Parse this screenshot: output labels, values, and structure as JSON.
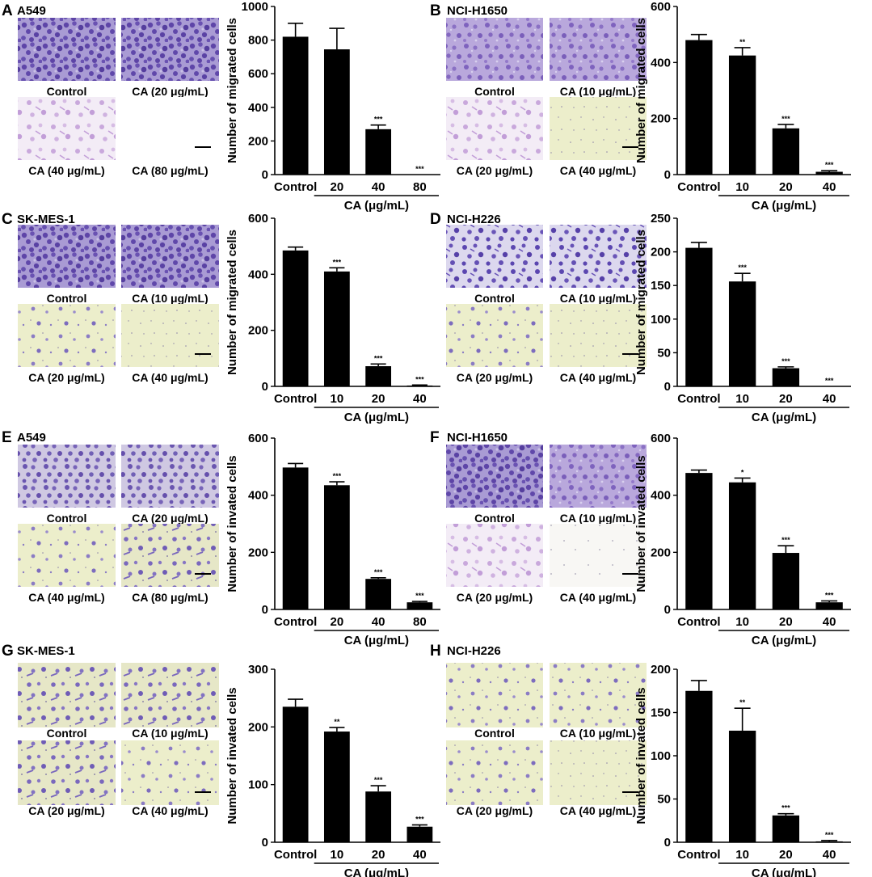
{
  "colors": {
    "bar": "#000000",
    "stain_dense": "#7a5fb8",
    "stain_light": "#e9ebc4",
    "stain_pale": "#f1eaf3"
  },
  "panels": [
    {
      "letter": "A",
      "cell": "A549",
      "images": [
        {
          "label": "Control",
          "style": "dense"
        },
        {
          "label": "CA (20 μg/mL)",
          "style": "dense"
        },
        {
          "label": "CA (40 μg/mL)",
          "style": "pale"
        },
        {
          "label": "CA (80 μg/mL)",
          "style": "empty"
        }
      ]
    },
    {
      "letter": "B",
      "cell": "NCI-H1650",
      "images": [
        {
          "label": "Control",
          "style": "lavender"
        },
        {
          "label": "CA (10 μg/mL)",
          "style": "lavender"
        },
        {
          "label": "CA (20 μg/mL)",
          "style": "pale"
        },
        {
          "label": "CA (40 μg/mL)",
          "style": "green"
        }
      ]
    },
    {
      "letter": "C",
      "cell": "SK-MES-1",
      "images": [
        {
          "label": "Control",
          "style": "dense"
        },
        {
          "label": "CA (10 μg/mL)",
          "style": "dense"
        },
        {
          "label": "CA (20 μg/mL)",
          "style": "green_sparse"
        },
        {
          "label": "CA (40 μg/mL)",
          "style": "green"
        }
      ]
    },
    {
      "letter": "D",
      "cell": "NCI-H226",
      "images": [
        {
          "label": "Control",
          "style": "medium"
        },
        {
          "label": "CA (10 μg/mL)",
          "style": "medium"
        },
        {
          "label": "CA (20 μg/mL)",
          "style": "green_sparse"
        },
        {
          "label": "CA (40 μg/mL)",
          "style": "green"
        }
      ]
    },
    {
      "letter": "E",
      "cell": "A549",
      "images": [
        {
          "label": "Control",
          "style": "green_dense"
        },
        {
          "label": "CA (20 μg/mL)",
          "style": "green_dense"
        },
        {
          "label": "CA (40 μg/mL)",
          "style": "green_sparse"
        },
        {
          "label": "CA (80 μg/mL)",
          "style": "green_medium"
        }
      ]
    },
    {
      "letter": "F",
      "cell": "NCI-H1650",
      "images": [
        {
          "label": "Control",
          "style": "dense"
        },
        {
          "label": "CA (10 μg/mL)",
          "style": "lavender"
        },
        {
          "label": "CA (20 μg/mL)",
          "style": "pale"
        },
        {
          "label": "CA (40 μg/mL)",
          "style": "white"
        }
      ]
    },
    {
      "letter": "G",
      "cell": "SK-MES-1",
      "images": [
        {
          "label": "Control",
          "style": "green_medium"
        },
        {
          "label": "CA (10 μg/mL)",
          "style": "green_medium"
        },
        {
          "label": "CA (20 μg/mL)",
          "style": "green_medium"
        },
        {
          "label": "CA (40 μg/mL)",
          "style": "green_sparse"
        }
      ]
    },
    {
      "letter": "H",
      "cell": "NCI-H226",
      "images": [
        {
          "label": "Control",
          "style": "green_sparse"
        },
        {
          "label": "CA (10 μg/mL)",
          "style": "green_sparse"
        },
        {
          "label": "CA (20 μg/mL)",
          "style": "green_sparse"
        },
        {
          "label": "CA (40 μg/mL)",
          "style": "green"
        }
      ]
    }
  ],
  "chart_data": [
    {
      "panel": "A",
      "type": "bar",
      "categories": [
        "Control",
        "20",
        "40",
        "80"
      ],
      "values": [
        820,
        745,
        270,
        0
      ],
      "errors": [
        80,
        125,
        25,
        0
      ],
      "significance": [
        "",
        "",
        "***",
        "***"
      ],
      "ylabel": "Number of migrated cells",
      "xlabel": "CA (μg/mL)",
      "ylim": [
        0,
        1000
      ],
      "yticks": [
        0,
        200,
        400,
        600,
        800,
        1000
      ]
    },
    {
      "panel": "B",
      "type": "bar",
      "categories": [
        "Control",
        "10",
        "20",
        "40"
      ],
      "values": [
        480,
        425,
        165,
        10
      ],
      "errors": [
        20,
        28,
        14,
        4
      ],
      "significance": [
        "",
        "**",
        "***",
        "***"
      ],
      "ylabel": "Number of migrated cells",
      "xlabel": "CA (μg/mL)",
      "ylim": [
        0,
        600
      ],
      "yticks": [
        0,
        200,
        400,
        600
      ]
    },
    {
      "panel": "C",
      "type": "bar",
      "categories": [
        "Control",
        "10",
        "20",
        "40"
      ],
      "values": [
        485,
        410,
        72,
        3
      ],
      "errors": [
        12,
        13,
        8,
        2
      ],
      "significance": [
        "",
        "***",
        "***",
        "***"
      ],
      "ylabel": "Number of migrated cells",
      "xlabel": "CA (μg/mL)",
      "ylim": [
        0,
        600
      ],
      "yticks": [
        0,
        200,
        400,
        600
      ]
    },
    {
      "panel": "D",
      "type": "bar",
      "categories": [
        "Control",
        "10",
        "20",
        "40"
      ],
      "values": [
        206,
        156,
        27,
        0
      ],
      "errors": [
        8,
        12,
        2,
        0
      ],
      "significance": [
        "",
        "***",
        "***",
        "***"
      ],
      "ylabel": "Number of migrated cells",
      "xlabel": "CA (μg/mL)",
      "ylim": [
        0,
        250
      ],
      "yticks": [
        0,
        50,
        100,
        150,
        200,
        250
      ]
    },
    {
      "panel": "E",
      "type": "bar",
      "categories": [
        "Control",
        "20",
        "40",
        "80"
      ],
      "values": [
        497,
        435,
        107,
        25
      ],
      "errors": [
        14,
        12,
        4,
        3
      ],
      "significance": [
        "",
        "***",
        "***",
        "***"
      ],
      "ylabel": "Number of invated cells",
      "xlabel": "CA (μg/mL)",
      "ylim": [
        0,
        600
      ],
      "yticks": [
        0,
        200,
        400,
        600
      ]
    },
    {
      "panel": "F",
      "type": "bar",
      "categories": [
        "Control",
        "10",
        "20",
        "40"
      ],
      "values": [
        478,
        445,
        198,
        25
      ],
      "errors": [
        10,
        15,
        25,
        5
      ],
      "significance": [
        "",
        "*",
        "***",
        "***"
      ],
      "ylabel": "Number of invated cells",
      "xlabel": "CA (μg/mL)",
      "ylim": [
        0,
        600
      ],
      "yticks": [
        0,
        200,
        400,
        600
      ]
    },
    {
      "panel": "G",
      "type": "bar",
      "categories": [
        "Control",
        "10",
        "20",
        "40"
      ],
      "values": [
        235,
        192,
        88,
        27
      ],
      "errors": [
        13,
        7,
        10,
        3
      ],
      "significance": [
        "",
        "**",
        "***",
        "***"
      ],
      "ylabel": "Number of invated cells",
      "xlabel": "CA (μg/mL)",
      "ylim": [
        0,
        300
      ],
      "yticks": [
        0,
        100,
        200,
        300
      ]
    },
    {
      "panel": "H",
      "type": "bar",
      "categories": [
        "Control",
        "10",
        "20",
        "40"
      ],
      "values": [
        175,
        129,
        31,
        1
      ],
      "errors": [
        12,
        26,
        2,
        1
      ],
      "significance": [
        "",
        "**",
        "***",
        "***"
      ],
      "ylabel": "Number of invated cells",
      "xlabel": "CA (μg/mL)",
      "ylim": [
        0,
        200
      ],
      "yticks": [
        0,
        50,
        100,
        150,
        200
      ]
    }
  ]
}
